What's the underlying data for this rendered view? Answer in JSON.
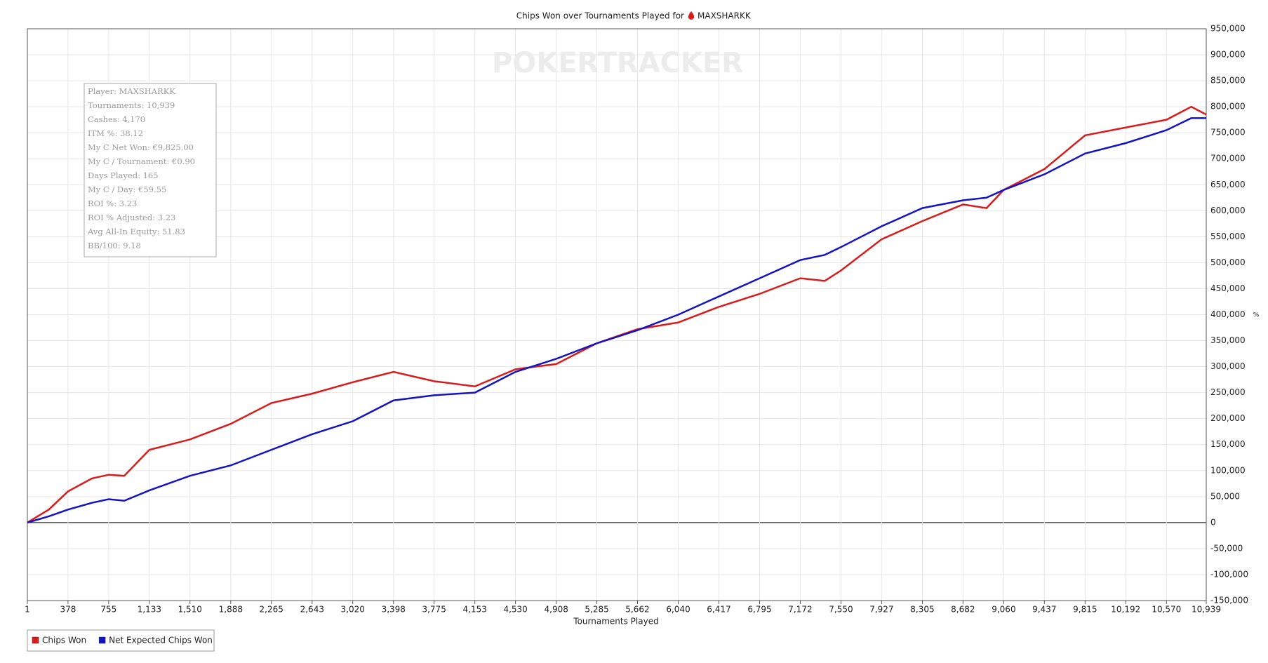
{
  "chart_data": {
    "type": "line",
    "title": "Chips Won over Tournaments Played for",
    "title_player": "MAXSHARKK",
    "watermark": "POKERTRACKER",
    "x_label": "Tournaments Played",
    "y_label": "%",
    "grid": true,
    "legend_position": "bottom-left",
    "stats": [
      "Player: MAXSHARKK",
      "Tournaments: 10,939",
      "Cashes: 4,170",
      "ITM %: 38.12",
      "My C Net Won: €9,825.00",
      "My C / Tournament: €0.90",
      "Days Played: 165",
      "My C / Day: €59.55",
      "ROI %: 3.23",
      "ROI % Adjusted: 3.23",
      "Avg All-In Equity: 51.83",
      "BB/100: 9.18"
    ],
    "x": [
      1,
      200,
      378,
      600,
      755,
      900,
      1133,
      1510,
      1888,
      2265,
      2643,
      3020,
      3398,
      3775,
      4153,
      4530,
      4908,
      5285,
      5662,
      6040,
      6417,
      6795,
      7172,
      7400,
      7550,
      7927,
      8305,
      8682,
      8900,
      9060,
      9437,
      9815,
      10192,
      10570,
      10800,
      10939
    ],
    "series": [
      {
        "name": "Chips Won",
        "color": "#d81c1c",
        "values": [
          0,
          25000,
          60000,
          85000,
          92000,
          90000,
          140000,
          160000,
          190000,
          230000,
          248000,
          270000,
          290000,
          272000,
          262000,
          295000,
          305000,
          345000,
          372000,
          385000,
          415000,
          440000,
          470000,
          465000,
          485000,
          545000,
          580000,
          612000,
          605000,
          640000,
          680000,
          745000,
          760000,
          775000,
          800000,
          785000
        ]
      },
      {
        "name": "Net Expected Chips Won",
        "color": "#1414c4",
        "values": [
          0,
          12000,
          25000,
          38000,
          45000,
          42000,
          62000,
          90000,
          110000,
          140000,
          170000,
          195000,
          235000,
          245000,
          250000,
          290000,
          315000,
          345000,
          370000,
          400000,
          435000,
          470000,
          505000,
          515000,
          530000,
          570000,
          605000,
          620000,
          625000,
          640000,
          670000,
          710000,
          730000,
          755000,
          778000,
          778000
        ]
      }
    ],
    "xlim": [
      1,
      10939
    ],
    "xticks": [
      1,
      378,
      755,
      {
        "value": 1133,
        "label": "1,133"
      },
      {
        "value": 1510,
        "label": "1,510"
      },
      {
        "value": 1888,
        "label": "1,888"
      },
      {
        "value": 2265,
        "label": "2,265"
      },
      {
        "value": 2643,
        "label": "2,643"
      },
      {
        "value": 3020,
        "label": "3,020"
      },
      {
        "value": 3398,
        "label": "3,398"
      },
      {
        "value": 3775,
        "label": "3,775"
      },
      {
        "value": 4153,
        "label": "4,153"
      },
      {
        "value": 4530,
        "label": "4,530"
      },
      {
        "value": 4908,
        "label": "4,908"
      },
      {
        "value": 5285,
        "label": "5,285"
      },
      {
        "value": 5662,
        "label": "5,662"
      },
      {
        "value": 6040,
        "label": "6,040"
      },
      {
        "value": 6417,
        "label": "6,417"
      },
      {
        "value": 6795,
        "label": "6,795"
      },
      {
        "value": 7172,
        "label": "7,172"
      },
      {
        "value": 7550,
        "label": "7,550"
      },
      {
        "value": 7927,
        "label": "7,927"
      },
      {
        "value": 8305,
        "label": "8,305"
      },
      {
        "value": 8682,
        "label": "8,682"
      },
      {
        "value": 9060,
        "label": "9,060"
      },
      {
        "value": 9437,
        "label": "9,437"
      },
      {
        "value": 9815,
        "label": "9,815"
      },
      {
        "value": 10192,
        "label": "10,192"
      },
      {
        "value": 10570,
        "label": "10,570"
      },
      {
        "value": 10939,
        "label": "10,939"
      }
    ],
    "ylim": [
      -150000,
      950000
    ],
    "yticks": [
      {
        "value": -150000,
        "label": "-150,000"
      },
      {
        "value": -100000,
        "label": "-100,000"
      },
      {
        "value": -50000,
        "label": "-50,000"
      },
      0,
      {
        "value": 50000,
        "label": "50,000"
      },
      {
        "value": 100000,
        "label": "100,000"
      },
      {
        "value": 150000,
        "label": "150,000"
      },
      {
        "value": 200000,
        "label": "200,000"
      },
      {
        "value": 250000,
        "label": "250,000"
      },
      {
        "value": 300000,
        "label": "300,000"
      },
      {
        "value": 350000,
        "label": "350,000"
      },
      {
        "value": 400000,
        "label": "400,000"
      },
      {
        "value": 450000,
        "label": "450,000"
      },
      {
        "value": 500000,
        "label": "500,000"
      },
      {
        "value": 550000,
        "label": "550,000"
      },
      {
        "value": 600000,
        "label": "600,000"
      },
      {
        "value": 650000,
        "label": "650,000"
      },
      {
        "value": 700000,
        "label": "700,000"
      },
      {
        "value": 750000,
        "label": "750,000"
      },
      {
        "value": 800000,
        "label": "800,000"
      },
      {
        "value": 850000,
        "label": "850,000"
      },
      {
        "value": 900000,
        "label": "900,000"
      },
      {
        "value": 950000,
        "label": "950,000"
      }
    ]
  }
}
